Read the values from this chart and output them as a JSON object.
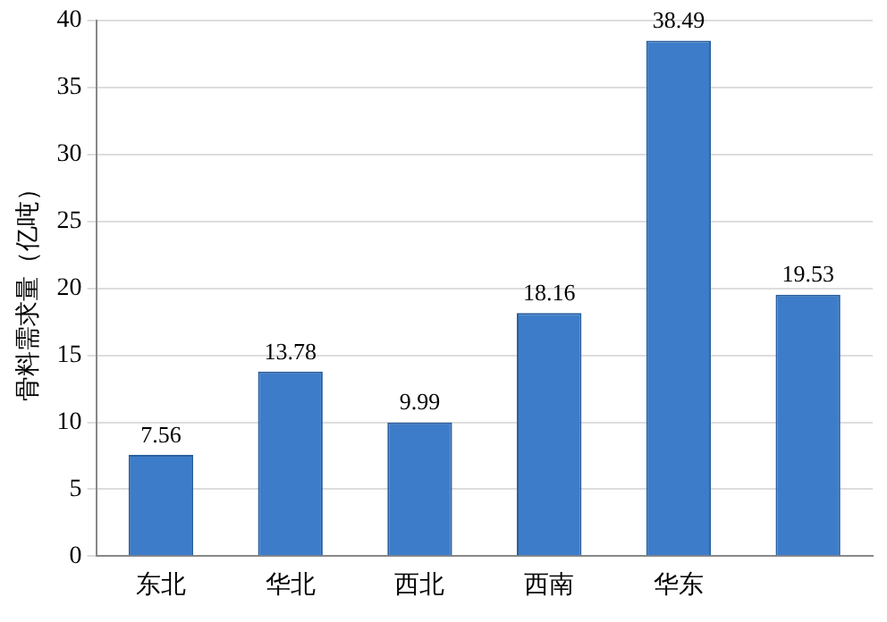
{
  "chart_data": {
    "type": "bar",
    "ylabel": "骨料需求量（亿吨）",
    "categories": [
      "东北",
      "华北",
      "西北",
      "西南",
      "华东",
      null
    ],
    "values": [
      7.56,
      13.78,
      9.99,
      18.16,
      38.49,
      19.53
    ],
    "color": "#3d7cc9",
    "ylim": [
      0,
      40
    ],
    "yticks": [
      0,
      5,
      10,
      15,
      20,
      25,
      30,
      35,
      40
    ],
    "grid": "y",
    "data_labels": true
  }
}
